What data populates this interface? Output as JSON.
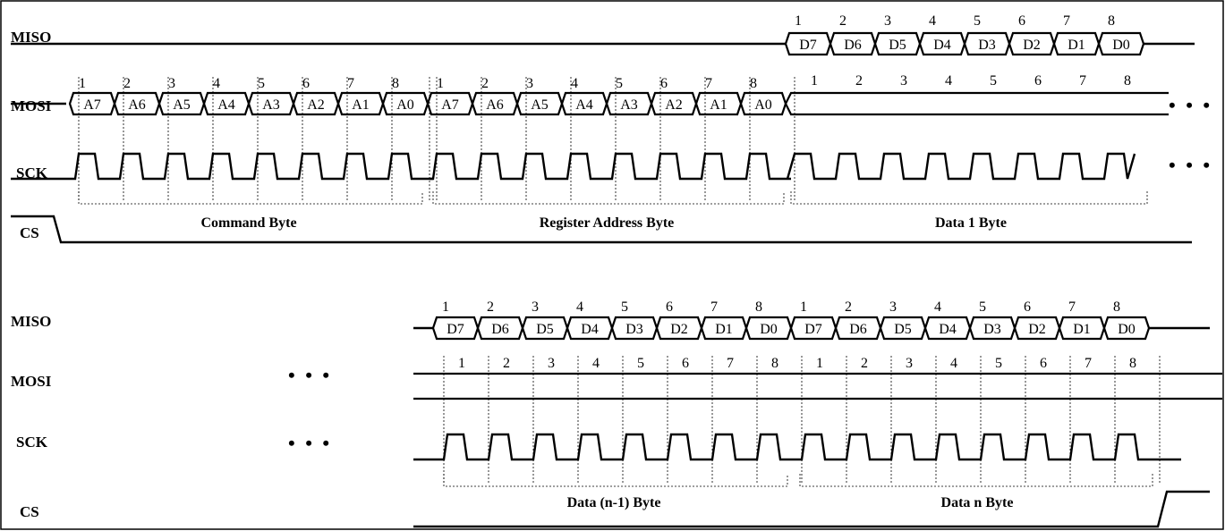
{
  "signals": {
    "miso": "MISO",
    "mosi": "MOSI",
    "sck": "SCK",
    "cs": "CS"
  },
  "bit_numbers": [
    "1",
    "2",
    "3",
    "4",
    "5",
    "6",
    "7",
    "8"
  ],
  "address_bits": [
    "A7",
    "A6",
    "A5",
    "A4",
    "A3",
    "A2",
    "A1",
    "A0"
  ],
  "data_bits": [
    "D7",
    "D6",
    "D5",
    "D4",
    "D3",
    "D2",
    "D1",
    "D0"
  ],
  "continuation": "• • •",
  "top": {
    "bytes": [
      "Command Byte",
      "Register Address Byte",
      "Data 1 Byte"
    ]
  },
  "bottom": {
    "bytes": [
      "Data (n-1) Byte",
      "Data n Byte"
    ]
  }
}
